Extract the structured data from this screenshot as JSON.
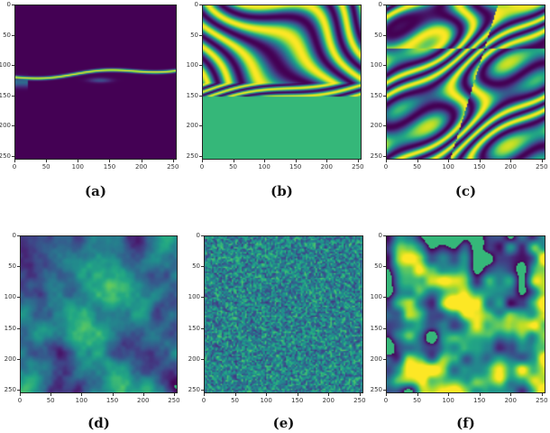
{
  "chart_data": [
    {
      "type": "heatmap",
      "caption": "(a)",
      "pattern": "fault-line",
      "x_ticks": [
        "0",
        "50",
        "100",
        "150",
        "200",
        "250"
      ],
      "y_ticks": [
        "0",
        "50",
        "100",
        "150",
        "200",
        "250"
      ],
      "xlim": [
        0,
        256
      ],
      "ylim": [
        256,
        0
      ],
      "colormap": "viridis"
    },
    {
      "type": "heatmap",
      "caption": "(b)",
      "pattern": "wrapped-phase-layers",
      "x_ticks": [
        "0",
        "50",
        "100",
        "150",
        "200",
        "250"
      ],
      "y_ticks": [
        "0",
        "50",
        "100",
        "150",
        "200",
        "250"
      ],
      "xlim": [
        0,
        256
      ],
      "ylim": [
        256,
        0
      ],
      "colormap": "viridis"
    },
    {
      "type": "heatmap",
      "caption": "(c)",
      "pattern": "wrapped-phase-faulted",
      "x_ticks": [
        "0",
        "50",
        "100",
        "150",
        "200",
        "250"
      ],
      "y_ticks": [
        "0",
        "50",
        "100",
        "150",
        "200",
        "250"
      ],
      "xlim": [
        0,
        256
      ],
      "ylim": [
        256,
        0
      ],
      "colormap": "viridis"
    },
    {
      "type": "heatmap",
      "caption": "(d)",
      "pattern": "smooth-noise",
      "x_ticks": [
        "0",
        "50",
        "100",
        "150",
        "200",
        "250"
      ],
      "y_ticks": [
        "0",
        "50",
        "100",
        "150",
        "200",
        "250"
      ],
      "xlim": [
        0,
        256
      ],
      "ylim": [
        256,
        0
      ],
      "colormap": "viridis"
    },
    {
      "type": "heatmap",
      "caption": "(e)",
      "pattern": "white-noise",
      "x_ticks": [
        "0",
        "50",
        "100",
        "150",
        "200",
        "250"
      ],
      "y_ticks": [
        "0",
        "50",
        "100",
        "150",
        "200",
        "250"
      ],
      "xlim": [
        0,
        256
      ],
      "ylim": [
        256,
        0
      ],
      "colormap": "viridis"
    },
    {
      "type": "heatmap",
      "caption": "(f)",
      "pattern": "blob-noise",
      "x_ticks": [
        "0",
        "50",
        "100",
        "150",
        "200",
        "250"
      ],
      "y_ticks": [
        "0",
        "50",
        "100",
        "150",
        "200",
        "250"
      ],
      "xlim": [
        0,
        256
      ],
      "ylim": [
        256,
        0
      ],
      "colormap": "viridis"
    }
  ],
  "colors": {
    "viridis_low": "#440154",
    "viridis_mid": "#21918c",
    "viridis_high": "#fde725",
    "flat_green": "#35b779"
  }
}
